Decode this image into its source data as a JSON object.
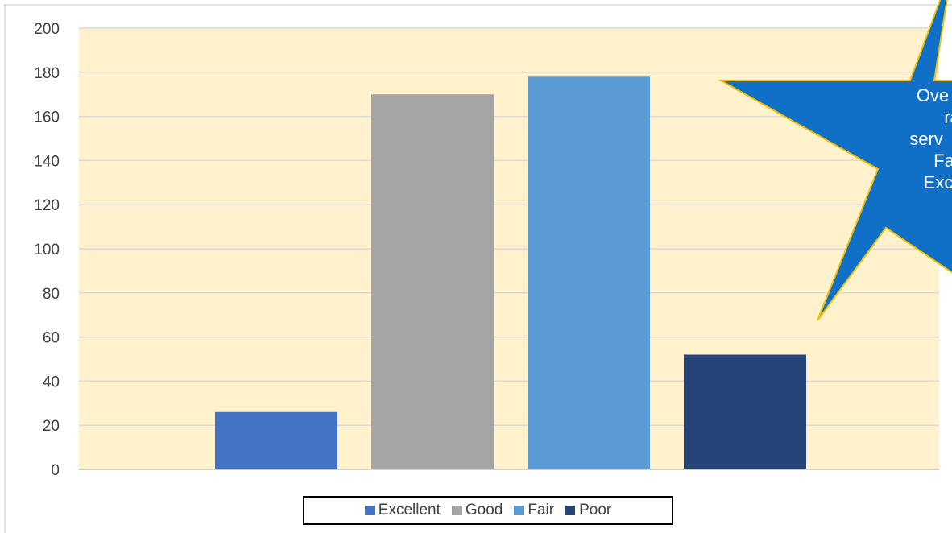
{
  "chart_data": {
    "type": "bar",
    "categories": [
      "Excellent",
      "Good",
      "Fair",
      "Poor"
    ],
    "values": [
      26,
      170,
      178,
      52
    ],
    "ylim": [
      0,
      200
    ],
    "yticks": [
      "0",
      "20",
      "40",
      "60",
      "80",
      "100",
      "120",
      "140",
      "160",
      "180",
      "200"
    ],
    "grid": true,
    "legend": "bottom",
    "series": [
      {
        "name": "Excellent",
        "value": 26,
        "color": "#4472C4"
      },
      {
        "name": "Good",
        "value": 170,
        "color": "#A5A5A5"
      },
      {
        "name": "Fair",
        "value": 178,
        "color": "#5B9BD5"
      },
      {
        "name": "Poor",
        "value": 52,
        "color": "#264478"
      }
    ],
    "plot_background": "#FFF2CC",
    "gridline_color": "#D9D9D9",
    "annotation": {
      "shape": "star",
      "fill": "#1070C8",
      "outline": "#F0C000",
      "text_color": "#FFFFFF",
      "lines": [
        "Ove",
        "ra",
        "serv",
        "Fa",
        "Exc"
      ]
    }
  },
  "legend": {
    "items": [
      {
        "label": "Excellent",
        "color": "#4472C4"
      },
      {
        "label": "Good",
        "color": "#A5A5A5"
      },
      {
        "label": "Fair",
        "color": "#5B9BD5"
      },
      {
        "label": "Poor",
        "color": "#264478"
      }
    ]
  }
}
